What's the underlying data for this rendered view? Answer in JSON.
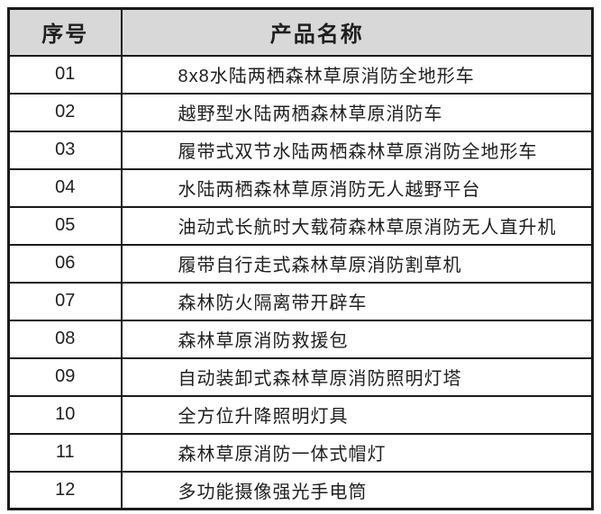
{
  "table": {
    "header": {
      "index_label": "序号",
      "name_label": "产品名称"
    },
    "rows": [
      {
        "index": "01",
        "name": "8x8水陆两栖森林草原消防全地形车"
      },
      {
        "index": "02",
        "name": "越野型水陆两栖森林草原消防车"
      },
      {
        "index": "03",
        "name": "履带式双节水陆两栖森林草原消防全地形车"
      },
      {
        "index": "04",
        "name": "水陆两栖森林草原消防无人越野平台"
      },
      {
        "index": "05",
        "name": "油动式长航时大载荷森林草原消防无人直升机"
      },
      {
        "index": "06",
        "name": "履带自行走式森林草原消防割草机"
      },
      {
        "index": "07",
        "name": "森林防火隔离带开辟车"
      },
      {
        "index": "08",
        "name": "森林草原消防救援包"
      },
      {
        "index": "09",
        "name": "自动装卸式森林草原消防照明灯塔"
      },
      {
        "index": "10",
        "name": "全方位升降照明灯具"
      },
      {
        "index": "11",
        "name": "森林草原消防一体式帽灯"
      },
      {
        "index": "12",
        "name": "多功能摄像强光手电筒"
      }
    ],
    "colors": {
      "header_bg": "#d8d8d8",
      "row_bg": "#ffffff",
      "border": "#1a1a1a",
      "text": "#1f1f1f"
    }
  }
}
